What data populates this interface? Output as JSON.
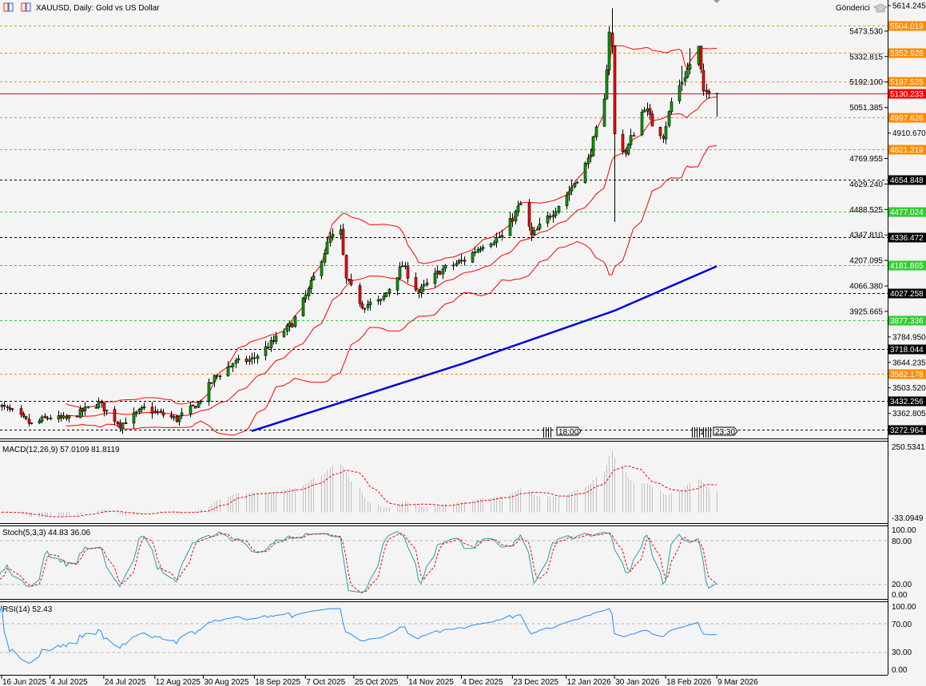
{
  "header": {
    "title": "XAUUSD, Daily:  Gold vs US Dollar",
    "sender_label": "Gönderici"
  },
  "colors": {
    "background": "#f4f4f4",
    "bull": "#00a000",
    "bear": "#ff0000",
    "bands": "#ff0000",
    "ma": "#0000dd",
    "macd_hist": "#c0c0c0",
    "signal": "#ff0000",
    "stoch_main": "#20a0b0",
    "rsi": "#1e90ff"
  },
  "price_axis": {
    "ticks": [
      "5614.245",
      "5473.530",
      "5332.815",
      "5192.100",
      "5051.385",
      "4910.670",
      "4769.955",
      "4629.240",
      "4488.525",
      "4347.810",
      "4207.095",
      "4066.380",
      "3925.665",
      "3784.950",
      "3644.235",
      "3503.520",
      "3362.805"
    ]
  },
  "levels": [
    {
      "value": "5504.019",
      "color": "#ff8c00",
      "style": "dashed"
    },
    {
      "value": "5352.928",
      "color": "#ff8c00",
      "style": "dashed"
    },
    {
      "value": "5197.525",
      "color": "#ff8c00",
      "style": "dashed"
    },
    {
      "value": "5130.233",
      "color": "#ff0000",
      "style": "solid"
    },
    {
      "value": "4997.626",
      "color": "#ff8c00",
      "style": "dashed"
    },
    {
      "value": "4821.219",
      "color": "#ff8c00",
      "style": "dashed"
    },
    {
      "value": "4654.848",
      "color": "#000000",
      "style": "dashed"
    },
    {
      "value": "4477.024",
      "color": "#32cd32",
      "style": "dashed"
    },
    {
      "value": "4336.472",
      "color": "#000000",
      "style": "dashed"
    },
    {
      "value": "4181.865",
      "color": "#32cd32",
      "style": "dashed"
    },
    {
      "value": "4027.258",
      "color": "#000000",
      "style": "dashed"
    },
    {
      "value": "3877.336",
      "color": "#32cd32",
      "style": "dashed"
    },
    {
      "value": "3718.044",
      "color": "#000000",
      "style": "dashed"
    },
    {
      "value": "3582.178",
      "color": "#ff8c00",
      "style": "dashed"
    },
    {
      "value": "3432.256",
      "color": "#000000",
      "style": "dashed"
    },
    {
      "value": "3272.964",
      "color": "#000000",
      "style": "dashed"
    }
  ],
  "session_markers": [
    "18:00",
    "23:30",
    "1"
  ],
  "indicators": {
    "macd": {
      "label": "MACD(12,26,9) 57.0109 81.8119",
      "max": "250.5341",
      "min": "-33.0949"
    },
    "stoch": {
      "label": "Stoch(5,3,3) 44.83 36.06",
      "ticks": [
        "100.00",
        "80.00",
        "20.00",
        "0.00"
      ]
    },
    "rsi": {
      "label": "RSI(14) 52.43",
      "ticks": [
        "100.00",
        "70.00",
        "30.00",
        "0.00"
      ]
    }
  },
  "time_axis": {
    "labels": [
      "16 Jun 2025",
      "4 Jul 2025",
      "24 Jul 2025",
      "12 Aug 2025",
      "30 Aug 2025",
      "18 Sep 2025",
      "7 Oct 2025",
      "25 Oct 2025",
      "14 Nov 2025",
      "4 Dec 2025",
      "23 Dec 2025",
      "12 Jan 2026",
      "30 Jan 2026",
      "18 Feb 2026",
      "9 Mar 2026"
    ]
  },
  "chart_data": {
    "type": "candlestick",
    "symbol": "XAUUSD",
    "timeframe": "Daily",
    "ylim": [
      3272.964,
      5614.245
    ],
    "approx_close_path": [
      [
        "2025-06-13",
        3420
      ],
      [
        "2025-06-20",
        3370
      ],
      [
        "2025-06-27",
        3300
      ],
      [
        "2025-07-03",
        3340
      ],
      [
        "2025-07-10",
        3330
      ],
      [
        "2025-07-22",
        3420
      ],
      [
        "2025-07-30",
        3300
      ],
      [
        "2025-08-08",
        3390
      ],
      [
        "2025-08-20",
        3330
      ],
      [
        "2025-08-28",
        3420
      ],
      [
        "2025-09-03",
        3560
      ],
      [
        "2025-09-10",
        3640
      ],
      [
        "2025-09-17",
        3660
      ],
      [
        "2025-09-25",
        3760
      ],
      [
        "2025-10-02",
        3860
      ],
      [
        "2025-10-08",
        4040
      ],
      [
        "2025-10-16",
        4330
      ],
      [
        "2025-10-20",
        4360
      ],
      [
        "2025-10-22",
        4100
      ],
      [
        "2025-10-28",
        3960
      ],
      [
        "2025-11-04",
        3980
      ],
      [
        "2025-11-12",
        4180
      ],
      [
        "2025-11-18",
        4030
      ],
      [
        "2025-11-26",
        4150
      ],
      [
        "2025-12-05",
        4210
      ],
      [
        "2025-12-12",
        4300
      ],
      [
        "2025-12-19",
        4340
      ],
      [
        "2025-12-26",
        4520
      ],
      [
        "2025-12-30",
        4340
      ],
      [
        "2026-01-06",
        4460
      ],
      [
        "2026-01-13",
        4590
      ],
      [
        "2026-01-20",
        4760
      ],
      [
        "2026-01-26",
        5080
      ],
      [
        "2026-01-28",
        5480
      ],
      [
        "2026-01-29",
        5380
      ],
      [
        "2026-01-30",
        4900
      ],
      [
        "2026-02-03",
        4800
      ],
      [
        "2026-02-05",
        4880
      ],
      [
        "2026-02-10",
        5060
      ],
      [
        "2026-02-13",
        4960
      ],
      [
        "2026-02-17",
        4900
      ],
      [
        "2026-02-20",
        5080
      ],
      [
        "2026-02-24",
        5200
      ],
      [
        "2026-02-27",
        5290
      ],
      [
        "2026-03-02",
        5380
      ],
      [
        "2026-03-04",
        5120
      ],
      [
        "2026-03-06",
        5150
      ],
      [
        "2026-03-09",
        5130
      ]
    ],
    "ma_path": [
      [
        "2025-09-17",
        3265
      ],
      [
        "2025-12-05",
        3640
      ],
      [
        "2026-01-30",
        3930
      ],
      [
        "2026-03-09",
        4175
      ]
    ],
    "last_price": 5130.233
  }
}
